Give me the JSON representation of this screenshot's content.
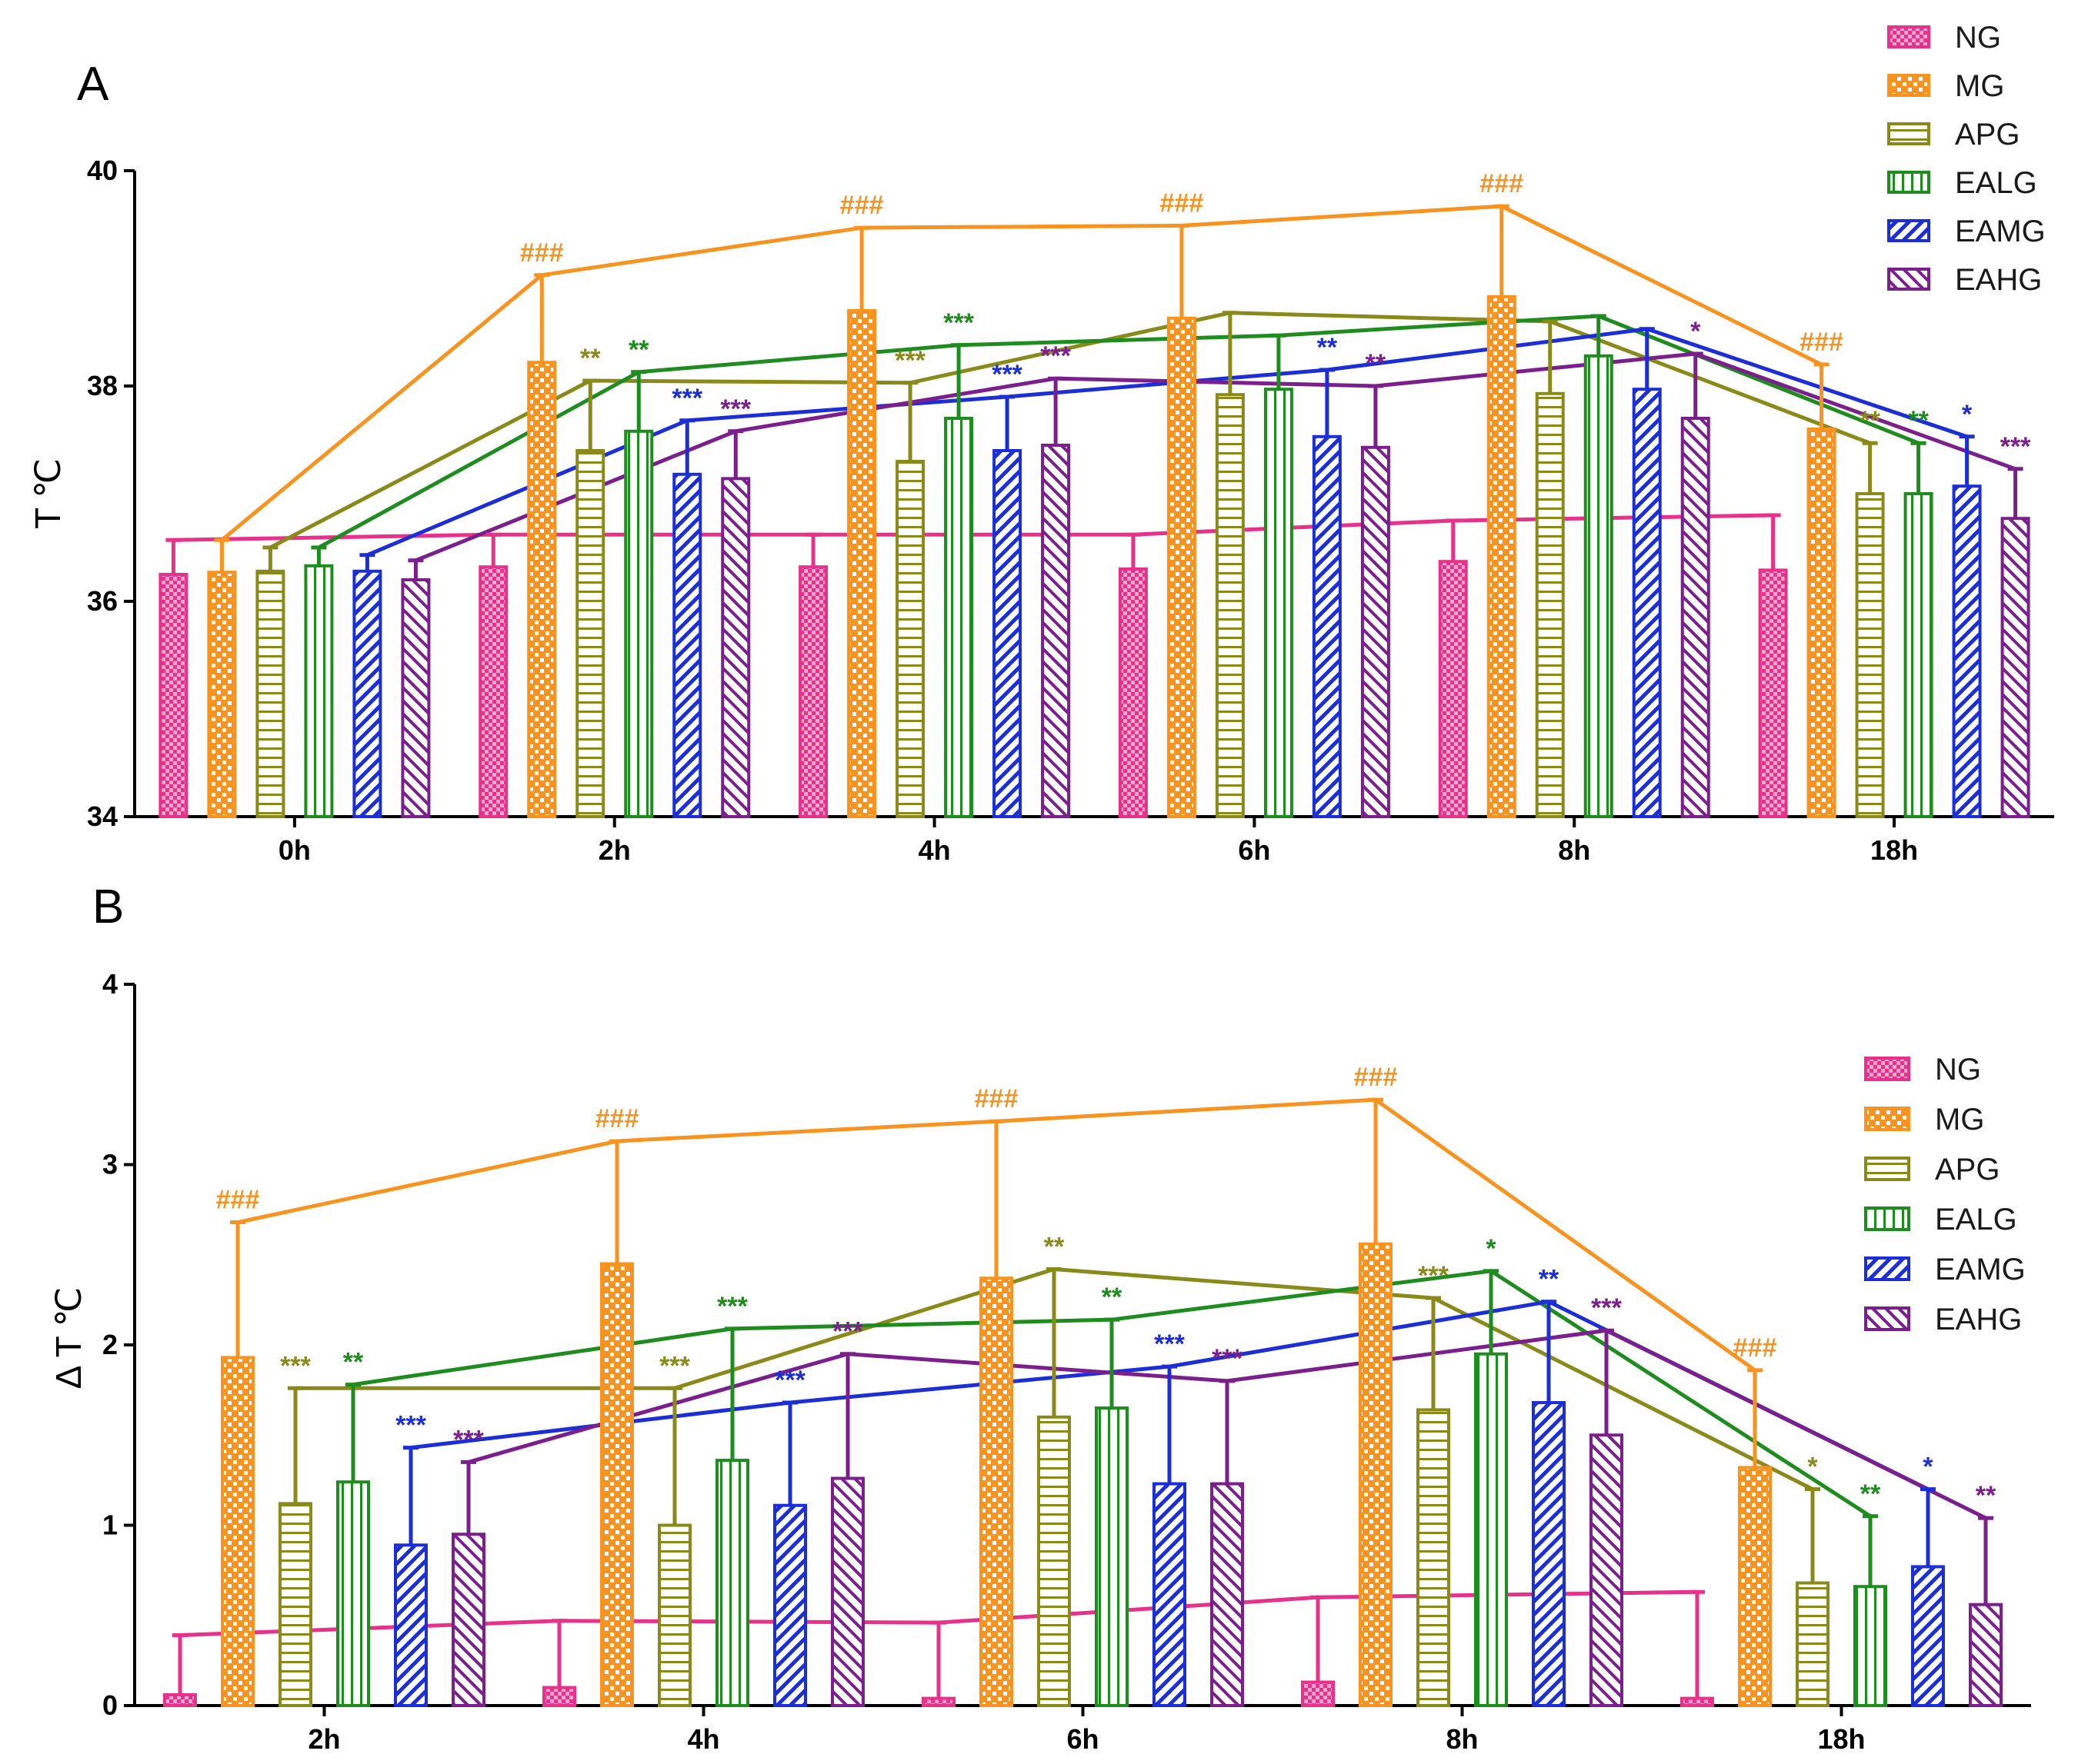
{
  "colors": {
    "NG": "#e8318a",
    "MG": "#f7931e",
    "APG": "#8a8a1a",
    "EALG": "#1f8c1f",
    "EAMG": "#1c2fd6",
    "EAHG": "#7a1f8c"
  },
  "series_names": [
    "NG",
    "MG",
    "APG",
    "EALG",
    "EAMG",
    "EAHG"
  ],
  "chart_data": [
    {
      "type": "bar",
      "panel": "A",
      "ylabel": "T ℃",
      "ylim": [
        34,
        40
      ],
      "yticks": [
        "34",
        "36",
        "38",
        "40"
      ],
      "categories": [
        "0h",
        "2h",
        "4h",
        "6h",
        "8h",
        "18h"
      ],
      "legend_position": "top-right",
      "series": [
        {
          "name": "NG",
          "values": [
            36.25,
            36.32,
            36.32,
            36.3,
            36.37,
            36.29
          ],
          "upper": [
            36.57,
            36.62,
            36.62,
            36.62,
            36.75,
            36.8
          ]
        },
        {
          "name": "MG",
          "values": [
            36.27,
            38.22,
            38.7,
            38.63,
            38.83,
            37.6
          ],
          "upper": [
            36.57,
            39.03,
            39.47,
            39.49,
            39.67,
            38.2
          ]
        },
        {
          "name": "APG",
          "values": [
            36.28,
            37.4,
            37.3,
            37.92,
            37.93,
            37.0
          ],
          "upper": [
            36.5,
            38.05,
            38.03,
            38.68,
            38.6,
            37.47
          ]
        },
        {
          "name": "EALG",
          "values": [
            36.33,
            37.58,
            37.7,
            37.97,
            38.28,
            37.0
          ],
          "upper": [
            36.5,
            38.13,
            38.38,
            38.47,
            38.65,
            37.47
          ]
        },
        {
          "name": "EAMG",
          "values": [
            36.28,
            37.18,
            37.4,
            37.53,
            37.97,
            37.07
          ],
          "upper": [
            36.43,
            37.68,
            37.9,
            38.15,
            38.53,
            37.53
          ]
        },
        {
          "name": "EAHG",
          "values": [
            36.2,
            37.14,
            37.45,
            37.43,
            37.7,
            36.77
          ],
          "upper": [
            36.38,
            37.58,
            38.07,
            38.0,
            38.3,
            37.23
          ]
        }
      ],
      "annotations": [
        {
          "text": "###",
          "category": 1,
          "series": "MG"
        },
        {
          "text": "###",
          "category": 2,
          "series": "MG"
        },
        {
          "text": "###",
          "category": 3,
          "series": "MG"
        },
        {
          "text": "###",
          "category": 4,
          "series": "MG"
        },
        {
          "text": "###",
          "category": 5,
          "series": "MG"
        },
        {
          "text": "**",
          "category": 1,
          "series": "APG"
        },
        {
          "text": "**",
          "category": 1,
          "series": "EALG"
        },
        {
          "text": "***",
          "category": 1,
          "series": "EAMG"
        },
        {
          "text": "***",
          "category": 1,
          "series": "EAHG"
        },
        {
          "text": "***",
          "category": 2,
          "series": "APG"
        },
        {
          "text": "***",
          "category": 2,
          "series": "EALG"
        },
        {
          "text": "***",
          "category": 2,
          "series": "EAMG"
        },
        {
          "text": "***",
          "category": 2,
          "series": "EAHG"
        },
        {
          "text": "**",
          "category": 3,
          "series": "EAMG"
        },
        {
          "text": "**",
          "category": 3,
          "series": "EAHG"
        },
        {
          "text": "*",
          "category": 4,
          "series": "EAHG"
        },
        {
          "text": "**",
          "category": 5,
          "series": "APG"
        },
        {
          "text": "**",
          "category": 5,
          "series": "EALG"
        },
        {
          "text": "*",
          "category": 5,
          "series": "EAMG"
        },
        {
          "text": "***",
          "category": 5,
          "series": "EAHG"
        }
      ]
    },
    {
      "type": "bar",
      "panel": "B",
      "ylabel": "Δ T ℃",
      "ylim": [
        0,
        4
      ],
      "yticks": [
        "0",
        "1",
        "2",
        "3",
        "4"
      ],
      "categories": [
        "2h",
        "4h",
        "6h",
        "8h",
        "18h"
      ],
      "legend_position": "right",
      "series": [
        {
          "name": "NG",
          "values": [
            0.06,
            0.1,
            0.04,
            0.13,
            0.04
          ],
          "upper": [
            0.39,
            0.47,
            0.46,
            0.6,
            0.63
          ]
        },
        {
          "name": "MG",
          "values": [
            1.93,
            2.45,
            2.37,
            2.56,
            1.32
          ],
          "upper": [
            2.68,
            3.13,
            3.24,
            3.36,
            1.86
          ]
        },
        {
          "name": "APG",
          "values": [
            1.12,
            1.0,
            1.6,
            1.64,
            0.68
          ],
          "upper": [
            1.76,
            1.76,
            2.42,
            2.26,
            1.2
          ]
        },
        {
          "name": "EALG",
          "values": [
            1.24,
            1.36,
            1.65,
            1.95,
            0.66
          ],
          "upper": [
            1.78,
            2.09,
            2.14,
            2.41,
            1.05
          ]
        },
        {
          "name": "EAMG",
          "values": [
            0.89,
            1.11,
            1.23,
            1.68,
            0.77
          ],
          "upper": [
            1.43,
            1.68,
            1.88,
            2.24,
            1.2
          ]
        },
        {
          "name": "EAHG",
          "values": [
            0.95,
            1.26,
            1.23,
            1.5,
            0.56
          ],
          "upper": [
            1.35,
            1.95,
            1.8,
            2.08,
            1.04
          ]
        }
      ],
      "annotations": [
        {
          "text": "###",
          "category": 0,
          "series": "MG"
        },
        {
          "text": "###",
          "category": 1,
          "series": "MG"
        },
        {
          "text": "###",
          "category": 2,
          "series": "MG"
        },
        {
          "text": "###",
          "category": 3,
          "series": "MG"
        },
        {
          "text": "###",
          "category": 4,
          "series": "MG"
        },
        {
          "text": "***",
          "category": 0,
          "series": "APG"
        },
        {
          "text": "**",
          "category": 0,
          "series": "EALG"
        },
        {
          "text": "***",
          "category": 0,
          "series": "EAMG"
        },
        {
          "text": "***",
          "category": 0,
          "series": "EAHG"
        },
        {
          "text": "***",
          "category": 1,
          "series": "APG"
        },
        {
          "text": "***",
          "category": 1,
          "series": "EALG"
        },
        {
          "text": "***",
          "category": 1,
          "series": "EAMG"
        },
        {
          "text": "***",
          "category": 1,
          "series": "EAHG"
        },
        {
          "text": "**",
          "category": 2,
          "series": "APG"
        },
        {
          "text": "**",
          "category": 2,
          "series": "EALG"
        },
        {
          "text": "***",
          "category": 2,
          "series": "EAMG"
        },
        {
          "text": "***",
          "category": 2,
          "series": "EAHG"
        },
        {
          "text": "***",
          "category": 3,
          "series": "APG"
        },
        {
          "text": "*",
          "category": 3,
          "series": "EALG"
        },
        {
          "text": "**",
          "category": 3,
          "series": "EAMG"
        },
        {
          "text": "***",
          "category": 3,
          "series": "EAHG"
        },
        {
          "text": "*",
          "category": 4,
          "series": "APG"
        },
        {
          "text": "**",
          "category": 4,
          "series": "EALG"
        },
        {
          "text": "*",
          "category": 4,
          "series": "EAMG"
        },
        {
          "text": "**",
          "category": 4,
          "series": "EAHG"
        }
      ]
    }
  ]
}
